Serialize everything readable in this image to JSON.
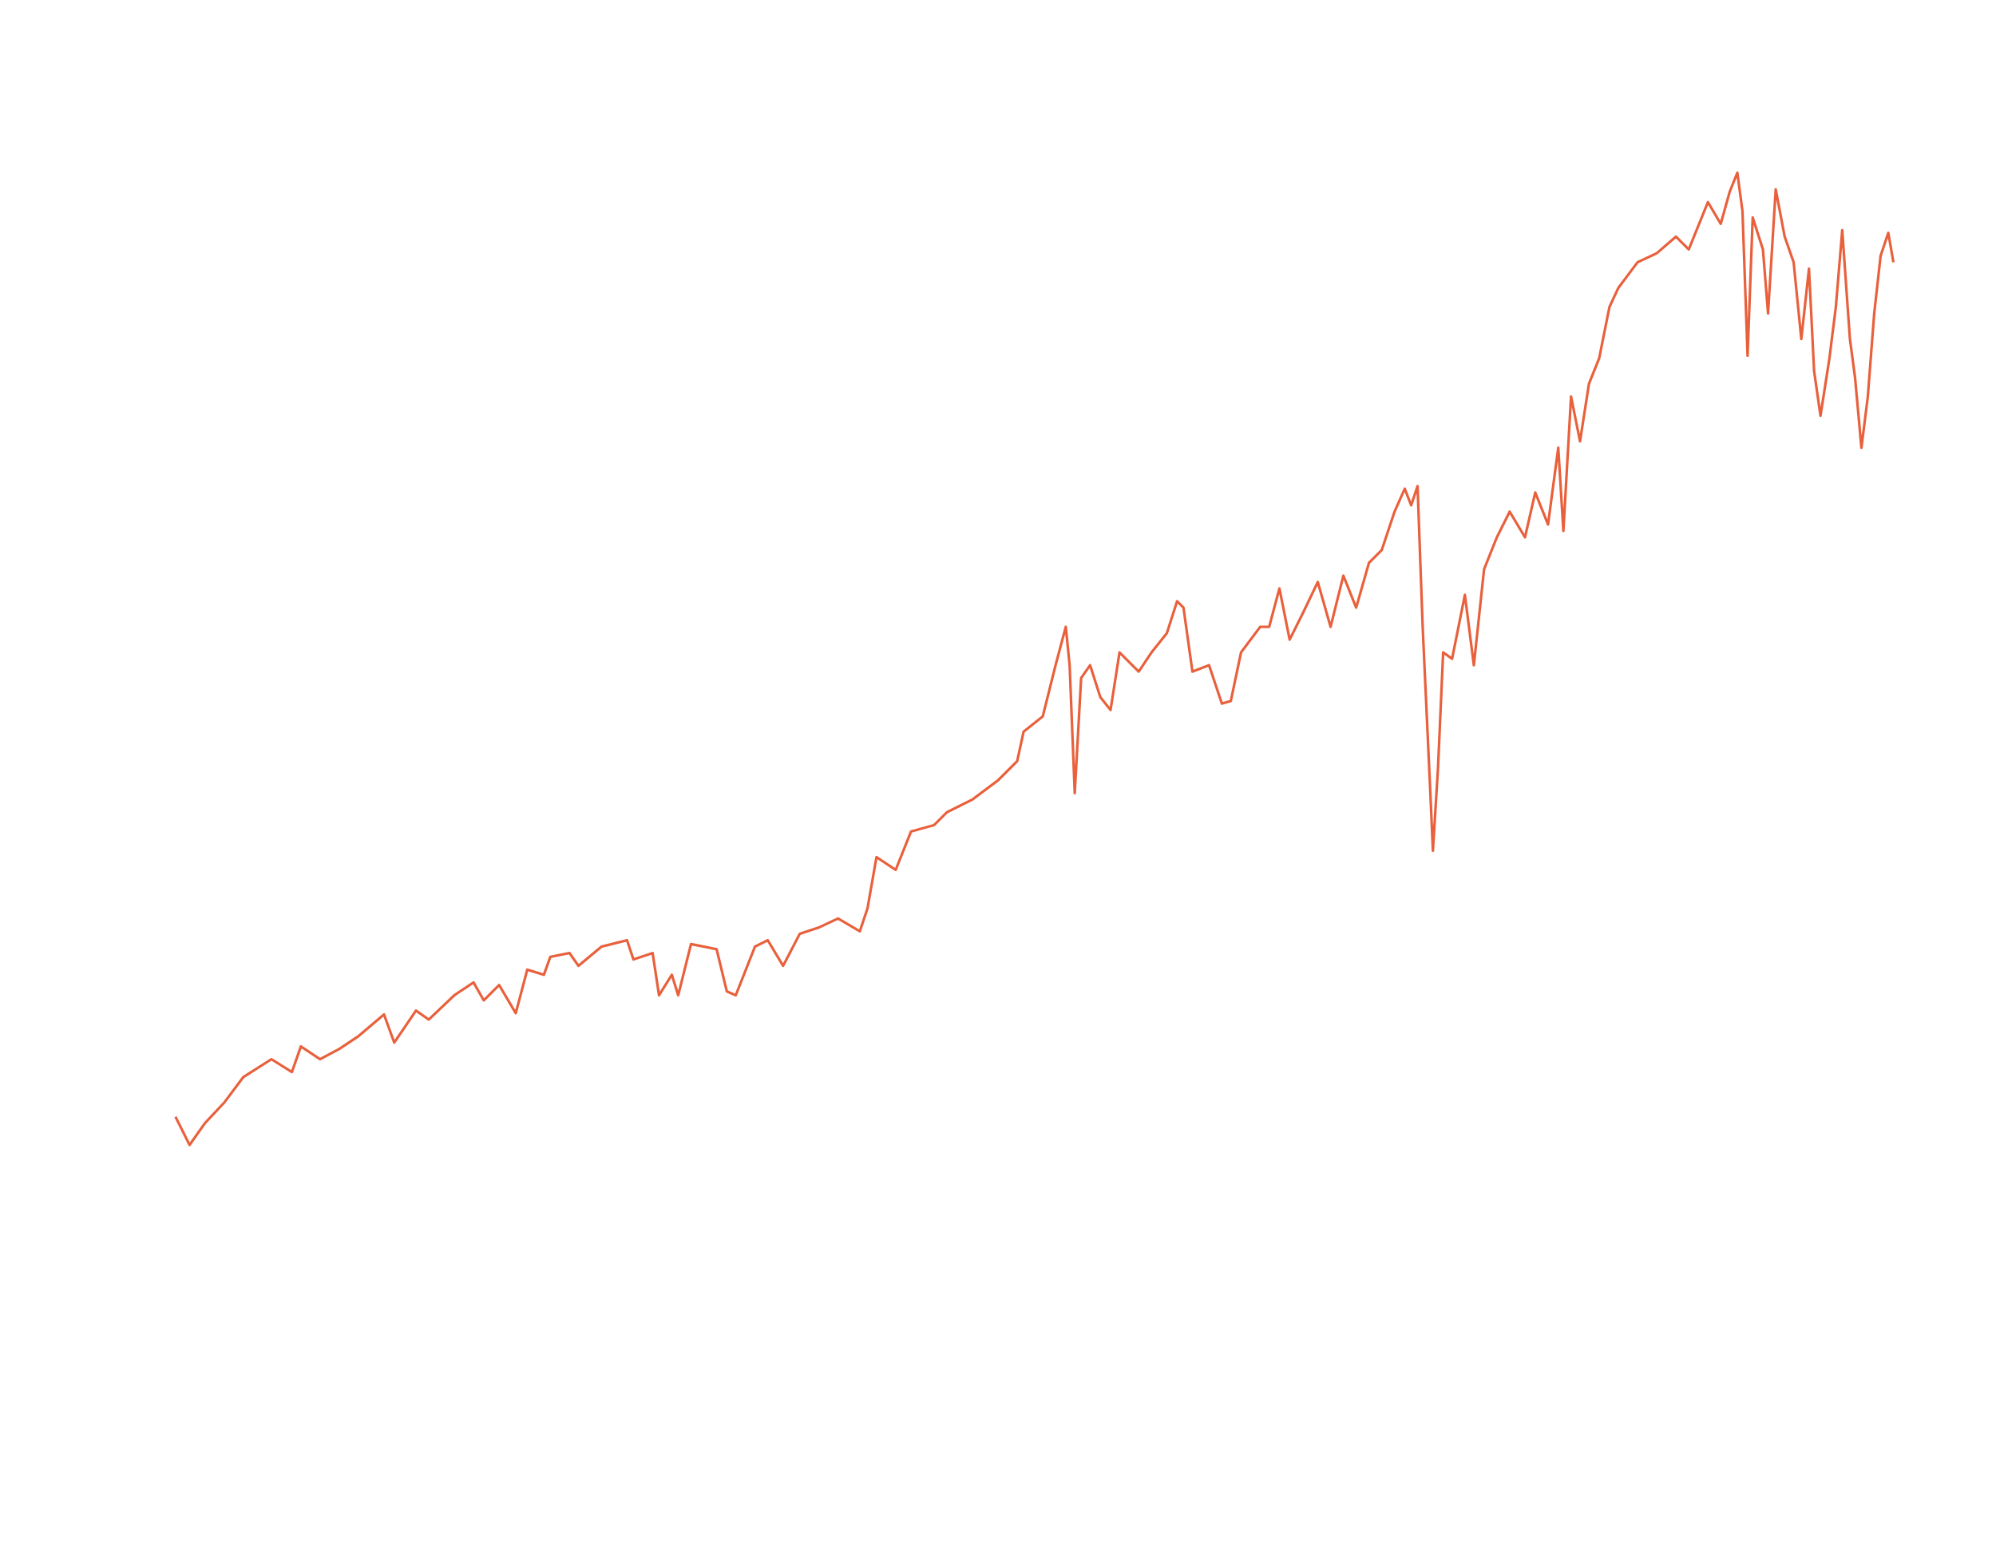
{
  "chart_data": {
    "type": "line",
    "x": [
      137,
      148,
      160,
      175,
      190,
      212,
      228,
      235,
      250,
      265,
      280,
      300,
      308,
      325,
      335,
      355,
      370,
      378,
      390,
      403,
      412,
      425,
      430,
      445,
      452,
      470,
      490,
      495,
      510,
      515,
      525,
      530,
      540,
      560,
      568,
      575,
      590,
      600,
      612,
      625,
      640,
      655,
      672,
      678,
      685,
      700,
      712,
      730,
      740,
      760,
      780,
      795,
      800,
      815,
      825,
      833,
      836,
      840,
      845,
      852,
      860,
      868,
      875,
      890,
      900,
      912,
      920,
      925,
      932,
      945,
      955,
      962,
      970,
      985,
      992,
      1000,
      1008,
      1018,
      1030,
      1040,
      1050,
      1060,
      1070,
      1080,
      1090,
      1098,
      1103,
      1108,
      1112,
      1118,
      1120,
      1124,
      1128,
      1135,
      1145,
      1152,
      1160,
      1170,
      1180,
      1192,
      1200,
      1210,
      1218,
      1222,
      1228,
      1235,
      1242,
      1250,
      1258,
      1265,
      1280,
      1295,
      1310,
      1320,
      1335,
      1345,
      1352,
      1358,
      1362,
      1366,
      1370,
      1378,
      1382,
      1388,
      1395,
      1402,
      1408,
      1414,
      1418,
      1423,
      1430,
      1435,
      1440,
      1446,
      1450,
      1455,
      1460,
      1465,
      1470,
      1476,
      1480
    ],
    "series": [
      {
        "color": "#e8603c",
        "values": [
          12.7,
          10.5,
          12.2,
          13.8,
          15.8,
          17.2,
          16.2,
          18.2,
          17.2,
          18.0,
          19.0,
          20.7,
          18.5,
          21.0,
          20.3,
          22.2,
          23.2,
          21.8,
          23.0,
          20.8,
          24.2,
          23.8,
          25.2,
          25.5,
          24.5,
          26.0,
          26.5,
          25.0,
          25.5,
          22.2,
          23.8,
          22.2,
          26.2,
          25.8,
          22.5,
          22.2,
          26.0,
          26.5,
          24.5,
          27.0,
          27.5,
          28.2,
          27.2,
          29.0,
          33.0,
          32.0,
          35.0,
          35.5,
          36.5,
          37.5,
          39.0,
          40.5,
          42.8,
          44.0,
          48.0,
          51.0,
          48.0,
          38.0,
          47.0,
          48.0,
          45.5,
          44.5,
          49.0,
          47.5,
          49.0,
          50.5,
          53.0,
          52.5,
          47.5,
          48.0,
          45.0,
          45.2,
          49.0,
          51.0,
          51.0,
          54.0,
          50.0,
          52.0,
          54.5,
          51.0,
          55.0,
          52.5,
          56.0,
          57.0,
          60.0,
          61.8,
          60.5,
          62.0,
          51.0,
          38.0,
          33.5,
          40.0,
          49.0,
          48.5,
          53.5,
          48.0,
          55.5,
          58.0,
          60.0,
          58.0,
          61.5,
          59.0,
          65.0,
          58.5,
          69.0,
          65.5,
          70.0,
          72.0,
          76.0,
          77.5,
          79.5,
          80.2,
          81.5,
          80.5,
          84.2,
          82.5,
          85.0,
          86.5,
          83.5,
          72.2,
          83.0,
          80.5,
          75.5,
          85.2,
          81.5,
          79.5,
          73.5,
          79.0,
          71.0,
          67.5,
          72.0,
          76.0,
          82.0,
          73.5,
          70.5,
          65.0,
          69.0,
          75.5,
          80.0,
          81.8,
          79.5
        ]
      }
    ],
    "xlim": [
      137,
      1480
    ],
    "ylim": [
      -21.4,
      100
    ]
  }
}
